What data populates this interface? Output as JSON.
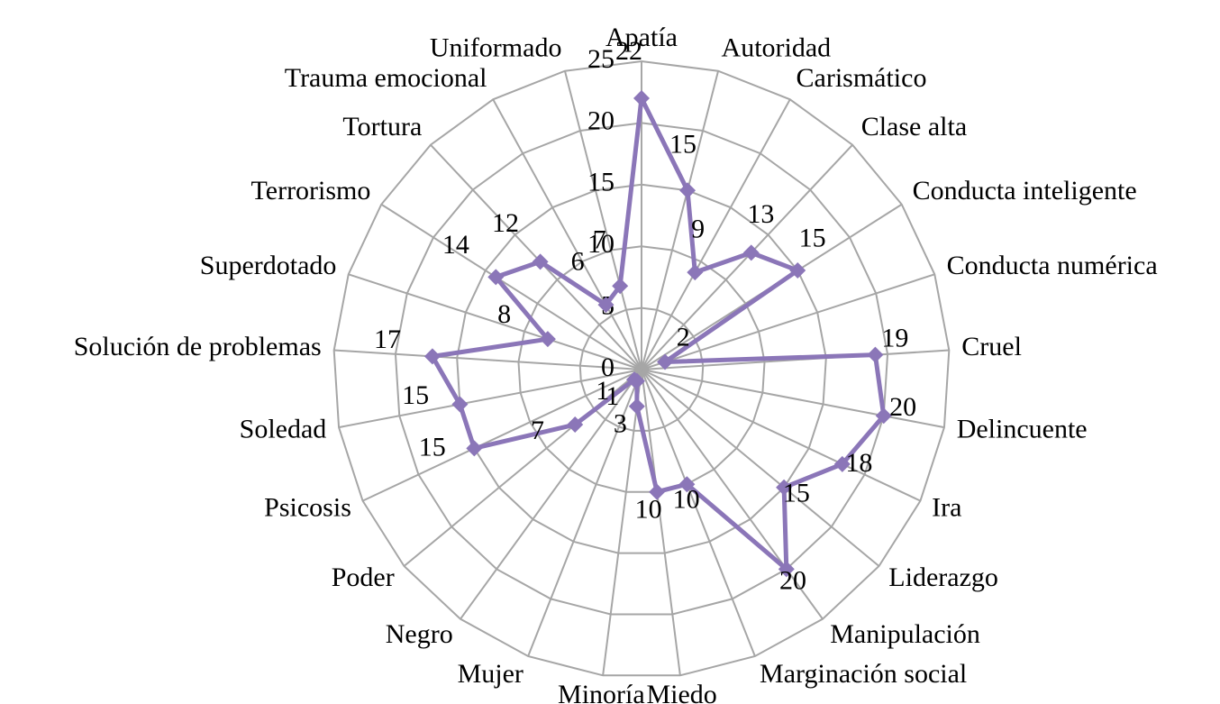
{
  "chart_data": {
    "type": "radar",
    "categories": [
      "Apatía",
      "Autoridad",
      "Carismático",
      "Clase alta",
      "Conducta inteligente",
      "Conducta numérica",
      "Cruel",
      "Delincuente",
      "Ira",
      "Liderazgo",
      "Manipulación",
      "Marginación social",
      "Miedo",
      "Minoría",
      "Mujer",
      "Negro",
      "Poder",
      "Psicosis",
      "Soledad",
      "Solución de problemas",
      "Superdotado",
      "Terrorismo",
      "Tortura",
      "Trauma emocional",
      "Uniformado"
    ],
    "values": [
      22,
      15,
      9,
      13,
      15,
      2,
      19,
      20,
      18,
      15,
      20,
      10,
      10,
      3,
      1,
      1,
      7,
      15,
      15,
      17,
      8,
      14,
      12,
      6,
      7
    ],
    "color": "#8b76b8",
    "ylim": [
      0,
      25
    ],
    "yticks": [
      0,
      5,
      10,
      15,
      20,
      25
    ],
    "grid": true
  }
}
